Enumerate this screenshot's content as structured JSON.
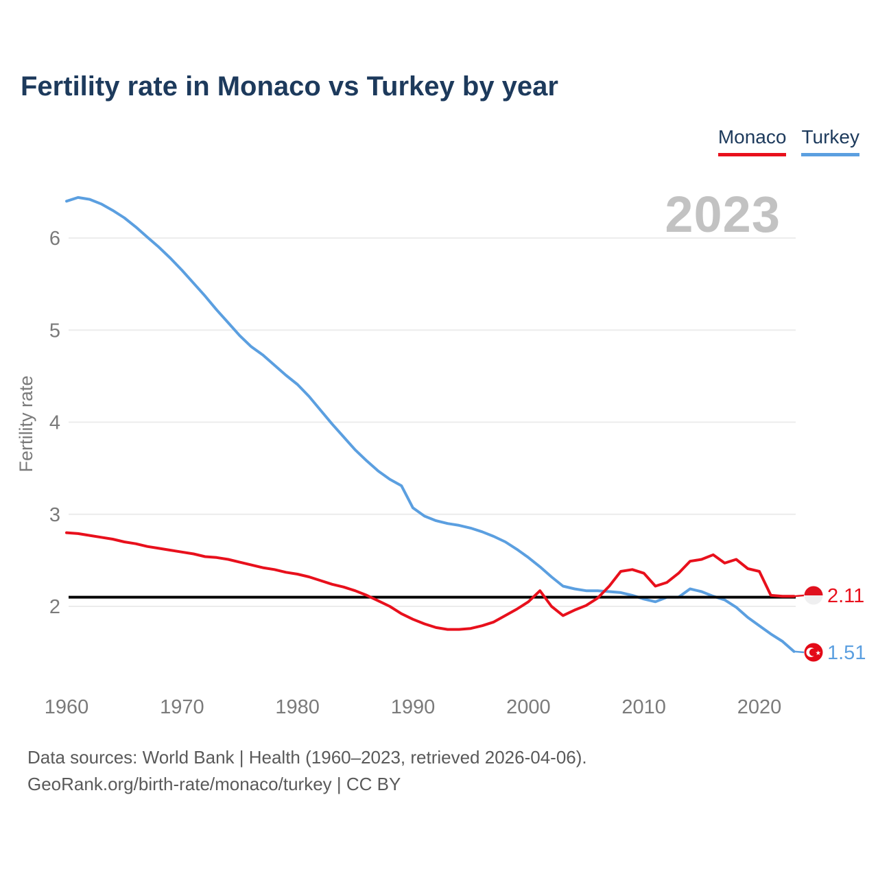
{
  "title": "Fertility rate in Monaco vs Turkey by year",
  "watermark": "2023",
  "legend": [
    {
      "label": "Monaco",
      "color": "#e8101c"
    },
    {
      "label": "Turkey",
      "color": "#5b9fe0"
    }
  ],
  "end_labels": {
    "monaco": {
      "value": "2.11",
      "color": "#e8101c",
      "flag": "monaco-flag-icon"
    },
    "turkey": {
      "value": "1.51",
      "color": "#5b9fe0",
      "flag": "turkey-flag-icon"
    }
  },
  "footer": {
    "line1": "Data sources: World Bank | Health (1960–2023, retrieved 2026-04-06).",
    "line2": "GeoRank.org/birth-rate/monaco/turkey | CC BY"
  },
  "chart_data": {
    "type": "line",
    "title": "Fertility rate in Monaco vs Turkey by year",
    "xlabel": "",
    "ylabel": "Fertility rate",
    "x_range": [
      1960,
      2023
    ],
    "xticks": [
      1960,
      1970,
      1980,
      1990,
      2000,
      2010,
      2020
    ],
    "yticks": [
      2,
      3,
      4,
      5,
      6
    ],
    "ylim": [
      1.4,
      6.6
    ],
    "grid": true,
    "legend_position": "top-right",
    "reference_line": 2.1,
    "x": [
      1960,
      1961,
      1962,
      1963,
      1964,
      1965,
      1966,
      1967,
      1968,
      1969,
      1970,
      1971,
      1972,
      1973,
      1974,
      1975,
      1976,
      1977,
      1978,
      1979,
      1980,
      1981,
      1982,
      1983,
      1984,
      1985,
      1986,
      1987,
      1988,
      1989,
      1990,
      1991,
      1992,
      1993,
      1994,
      1995,
      1996,
      1997,
      1998,
      1999,
      2000,
      2001,
      2002,
      2003,
      2004,
      2005,
      2006,
      2007,
      2008,
      2009,
      2010,
      2011,
      2012,
      2013,
      2014,
      2015,
      2016,
      2017,
      2018,
      2019,
      2020,
      2021,
      2022,
      2023
    ],
    "series": [
      {
        "name": "Turkey",
        "color": "#5b9fe0",
        "values": [
          6.4,
          6.44,
          6.42,
          6.37,
          6.3,
          6.22,
          6.12,
          6.01,
          5.9,
          5.78,
          5.65,
          5.51,
          5.37,
          5.22,
          5.08,
          4.94,
          4.82,
          4.73,
          4.62,
          4.51,
          4.41,
          4.28,
          4.13,
          3.98,
          3.84,
          3.7,
          3.58,
          3.47,
          3.38,
          3.31,
          3.07,
          2.98,
          2.93,
          2.9,
          2.88,
          2.85,
          2.81,
          2.76,
          2.7,
          2.62,
          2.53,
          2.43,
          2.32,
          2.22,
          2.19,
          2.17,
          2.17,
          2.16,
          2.15,
          2.12,
          2.08,
          2.05,
          2.1,
          2.1,
          2.19,
          2.16,
          2.11,
          2.07,
          1.99,
          1.88,
          1.79,
          1.7,
          1.62,
          1.51
        ]
      },
      {
        "name": "Monaco",
        "color": "#e8101c",
        "values": [
          2.8,
          2.79,
          2.77,
          2.75,
          2.73,
          2.7,
          2.68,
          2.65,
          2.63,
          2.61,
          2.59,
          2.57,
          2.54,
          2.53,
          2.51,
          2.48,
          2.45,
          2.42,
          2.4,
          2.37,
          2.35,
          2.32,
          2.28,
          2.24,
          2.21,
          2.17,
          2.12,
          2.06,
          2.0,
          1.92,
          1.86,
          1.81,
          1.77,
          1.75,
          1.75,
          1.76,
          1.79,
          1.83,
          1.9,
          1.97,
          2.05,
          2.17,
          2.0,
          1.9,
          1.96,
          2.01,
          2.09,
          2.22,
          2.38,
          2.4,
          2.36,
          2.22,
          2.26,
          2.36,
          2.49,
          2.51,
          2.56,
          2.47,
          2.51,
          2.41,
          2.38,
          2.12,
          2.11,
          2.11
        ]
      }
    ]
  }
}
